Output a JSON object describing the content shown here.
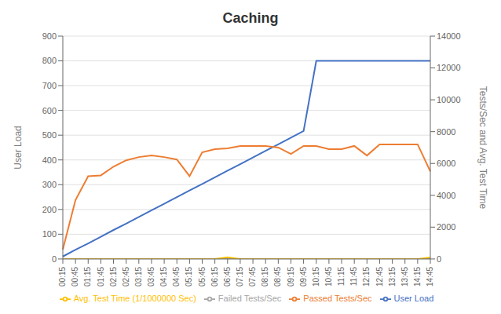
{
  "chart_data": {
    "type": "line",
    "title": "Caching",
    "ylabel": "User Load",
    "y2label": "Tests/Sec and Avg. Test Time",
    "categories": [
      "00:15",
      "00:45",
      "01:15",
      "01:45",
      "02:15",
      "02:45",
      "03:15",
      "03:45",
      "04:15",
      "04:45",
      "05:15",
      "05:45",
      "06:15",
      "06:45",
      "07:15",
      "07:45",
      "08:15",
      "08:45",
      "09:15",
      "09:45",
      "10:15",
      "10:45",
      "11:15",
      "11:45",
      "12:15",
      "12:45",
      "13:15",
      "13:45",
      "14:15",
      "14:45"
    ],
    "series": [
      {
        "name": "User Load",
        "color": "#4472C4",
        "axis": "y",
        "values": [
          10,
          37,
          63,
          90,
          117,
          143,
          170,
          197,
          223,
          250,
          277,
          303,
          330,
          357,
          383,
          410,
          437,
          463,
          490,
          517,
          800,
          800,
          800,
          800,
          800,
          800,
          800,
          800,
          800,
          800
        ]
      },
      {
        "name": "Failed Tests/Sec",
        "color": "#A5A5A5",
        "axis": "y2",
        "values": [
          0,
          0,
          0,
          0,
          0,
          0,
          0,
          0,
          0,
          0,
          0,
          0,
          0,
          0,
          0,
          0,
          0,
          0,
          0,
          0,
          0,
          0,
          0,
          0,
          0,
          0,
          0,
          0,
          0,
          0
        ]
      },
      {
        "name": "Passed Tests/Sec",
        "color": "#ED7D31",
        "axis": "y2",
        "values": [
          600,
          3700,
          5200,
          5250,
          5800,
          6200,
          6400,
          6500,
          6400,
          6250,
          5200,
          6700,
          6900,
          6950,
          7100,
          7100,
          7100,
          7000,
          6600,
          7100,
          7100,
          6900,
          6900,
          7100,
          6500,
          7200,
          7200,
          7200,
          7200,
          5500
        ]
      },
      {
        "name": "Avg. Test Time (1/1000000 Sec)",
        "color": "#FFC000",
        "axis": "y2",
        "values": [
          0,
          0,
          0,
          0,
          0,
          0,
          0,
          0,
          0,
          0,
          0,
          0,
          0,
          100,
          0,
          0,
          0,
          0,
          0,
          0,
          0,
          0,
          0,
          0,
          0,
          0,
          0,
          0,
          0,
          100
        ]
      }
    ],
    "ylim": [
      0,
      900
    ],
    "yticks": [
      0,
      100,
      200,
      300,
      400,
      500,
      600,
      700,
      800,
      900
    ],
    "y2lim": [
      0,
      14000
    ],
    "y2ticks": [
      0,
      2000,
      4000,
      6000,
      8000,
      10000,
      12000,
      14000
    ],
    "grid": true,
    "legend": "bottom"
  }
}
